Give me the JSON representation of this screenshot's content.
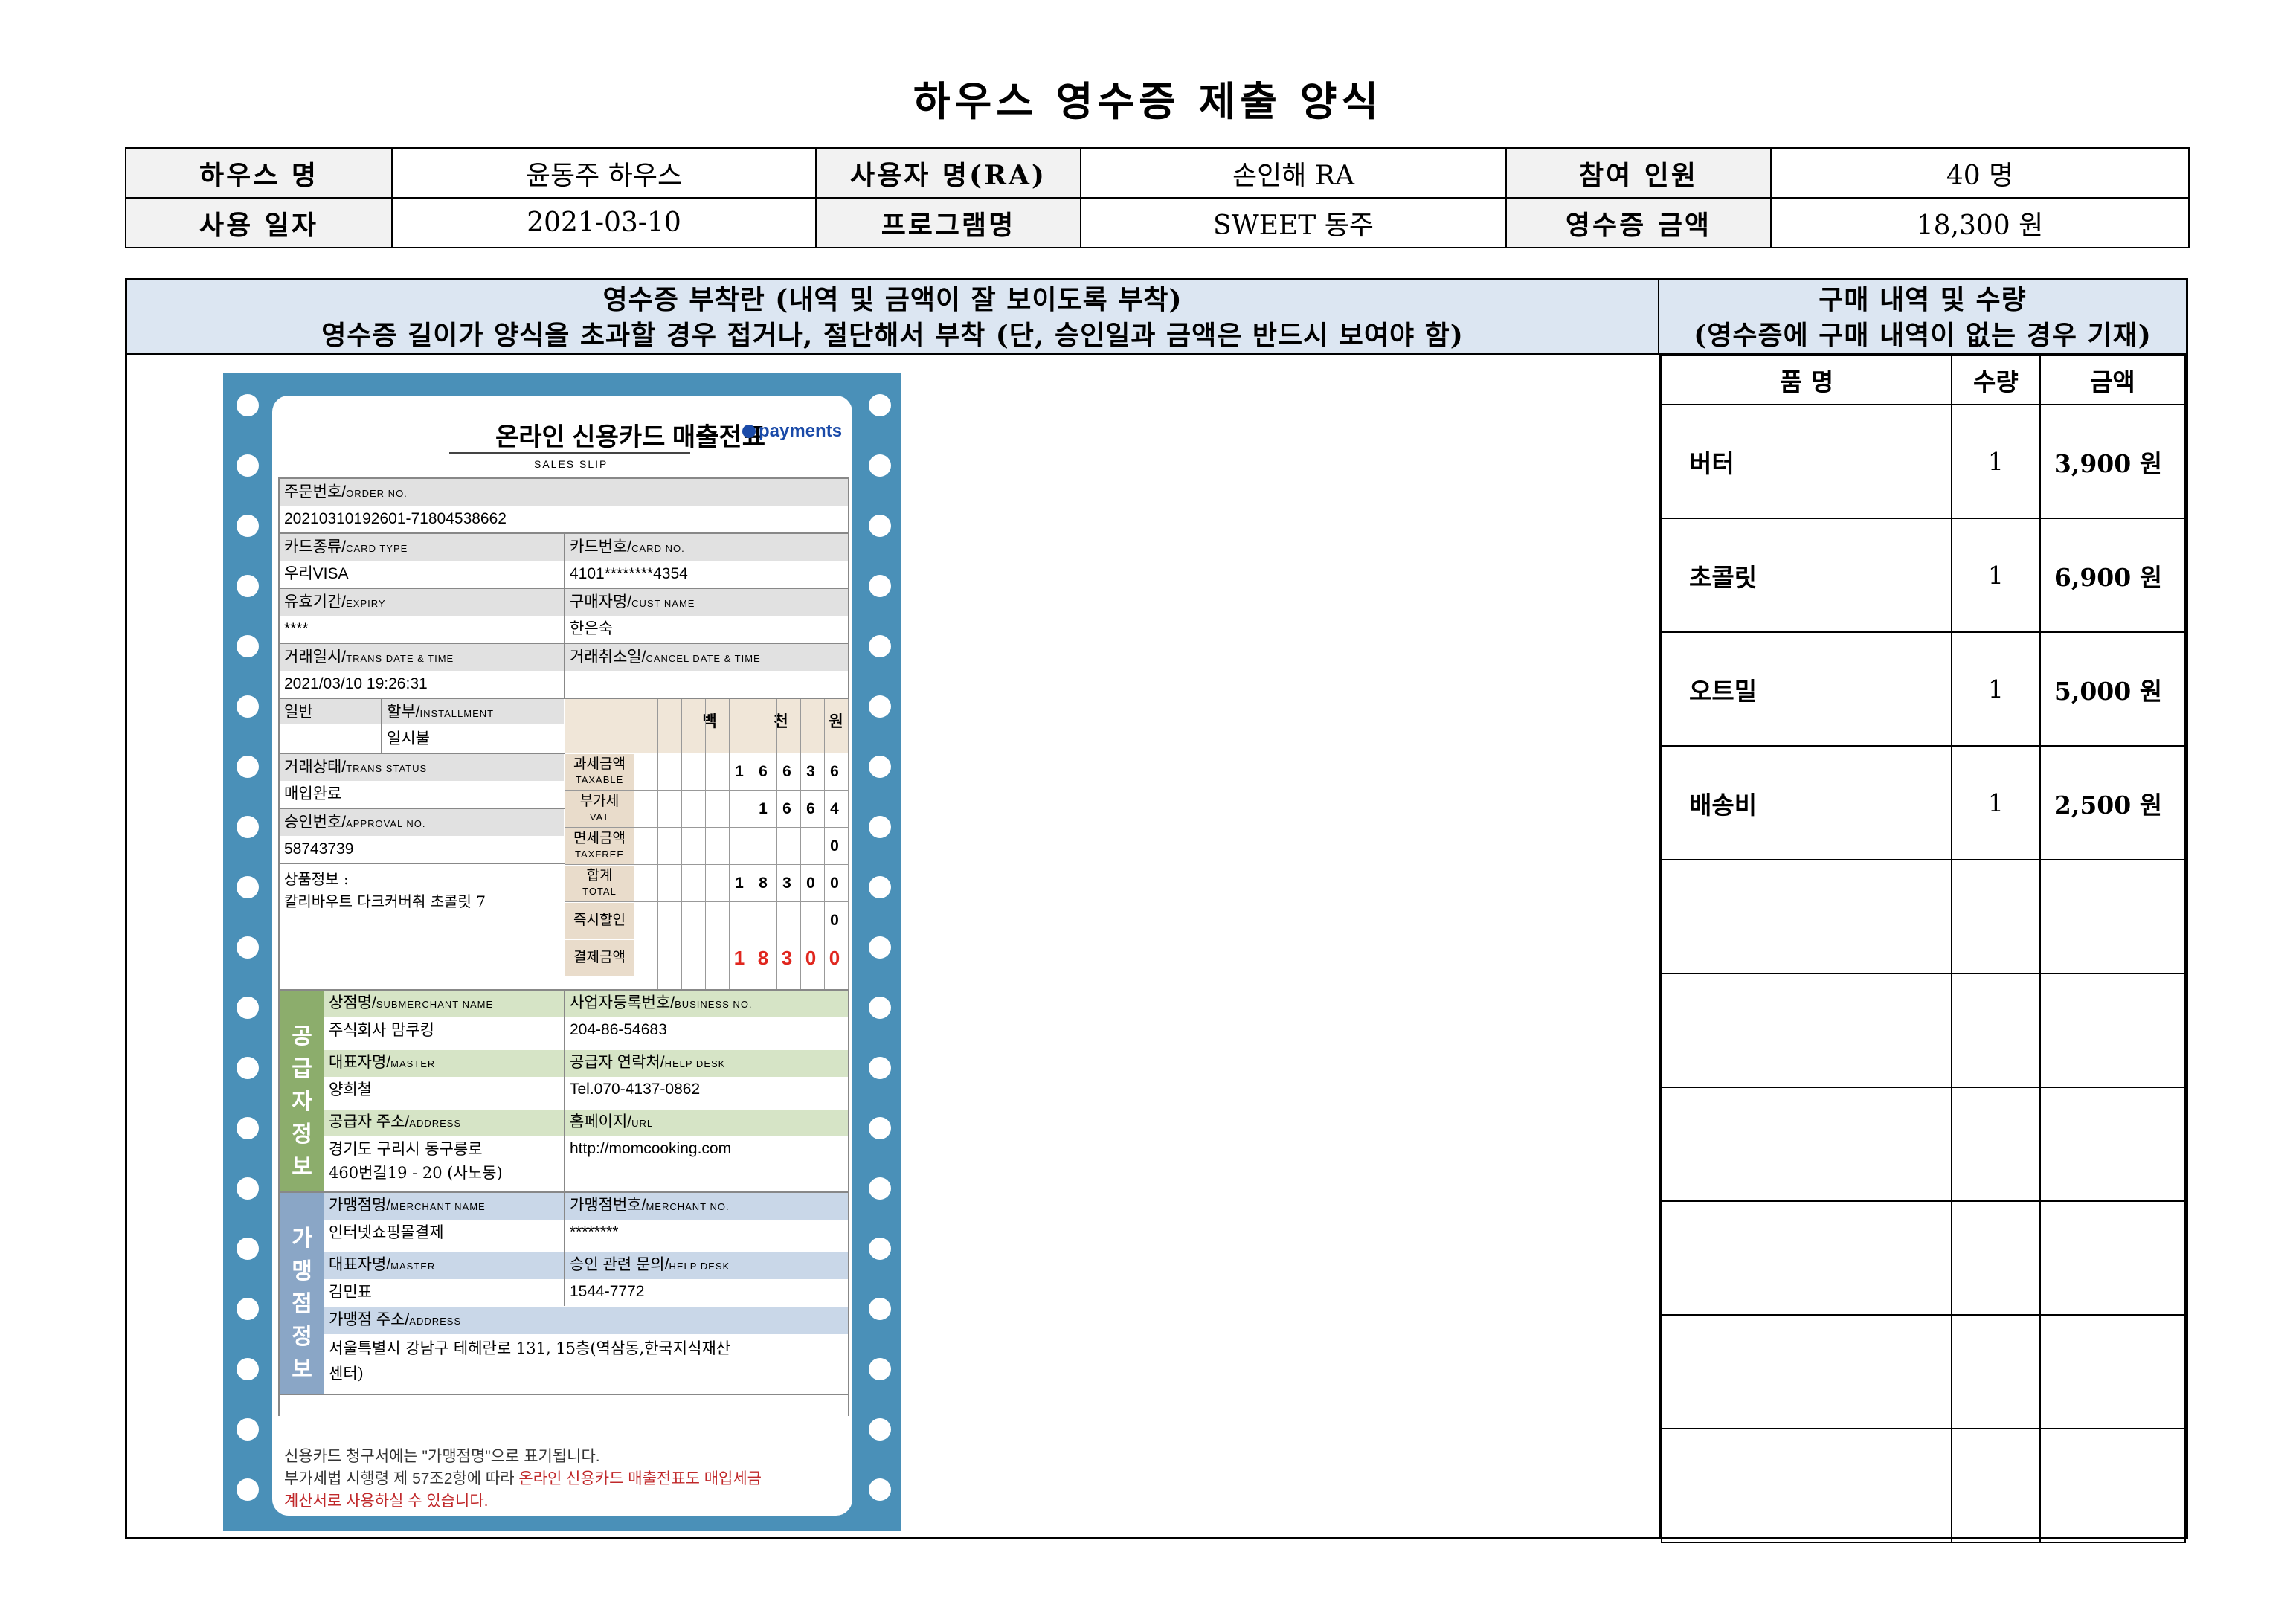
{
  "title": "하우스 영수증 제출 양식",
  "info": {
    "house_label": "하우스 명",
    "house_value": "윤동주 하우스",
    "user_label": "사용자 명(RA)",
    "user_value": "손인해 RA",
    "participants_label": "참여 인원",
    "participants_value": "40 명",
    "date_label": "사용 일자",
    "date_value": "2021-03-10",
    "program_label": "프로그램명",
    "program_value": "SWEET 동주",
    "amount_label": "영수증 금액",
    "amount_value": "18,300 원"
  },
  "attach": {
    "line1": "영수증 부착란 (내역 및 금액이 잘 보이도록 부착)",
    "line2": "영수증 길이가 양식을 초과할 경우 접거나, 절단해서 부착 (단, 승인일과 금액은 반드시 보여야 함)"
  },
  "purchase": {
    "line1": "구매 내역 및 수량",
    "line2": "(영수증에 구매 내역이 없는 경우 기재)",
    "col_name": "품 명",
    "col_qty": "수량",
    "col_amount": "금액",
    "rows": [
      {
        "name": "버터",
        "qty": "1",
        "amount": "3,900 원"
      },
      {
        "name": "초콜릿",
        "qty": "1",
        "amount": "6,900 원"
      },
      {
        "name": "오트밀",
        "qty": "1",
        "amount": "5,000 원"
      },
      {
        "name": "배송비",
        "qty": "1",
        "amount": "2,500 원"
      },
      {
        "name": "",
        "qty": "",
        "amount": ""
      },
      {
        "name": "",
        "qty": "",
        "amount": ""
      },
      {
        "name": "",
        "qty": "",
        "amount": ""
      },
      {
        "name": "",
        "qty": "",
        "amount": ""
      },
      {
        "name": "",
        "qty": "",
        "amount": ""
      },
      {
        "name": "",
        "qty": "",
        "amount": ""
      }
    ]
  },
  "slip": {
    "title": "온라인 신용카드 매출전표",
    "subtitle": "SALES SLIP",
    "logo": "payments",
    "order_label": "주문번호/",
    "order_label_en": "ORDER NO.",
    "order_value": "20210310192601-71804538662",
    "card_type_label": "카드종류/",
    "card_type_label_en": "CARD TYPE",
    "card_type_value": "우리VISA",
    "card_no_label": "카드번호/",
    "card_no_label_en": "CARD NO.",
    "card_no_value": "4101********4354",
    "expiry_label": "유효기간/",
    "expiry_label_en": "EXPIRY",
    "expiry_value": "****",
    "buyer_label": "구매자명/",
    "buyer_label_en": "CUST NAME",
    "buyer_value": "한은숙",
    "trans_label": "거래일시/",
    "trans_label_en": "TRANS DATE & TIME",
    "trans_value": "2021/03/10 19:26:31",
    "cancel_label": "거래취소일/",
    "cancel_label_en": "CANCEL DATE & TIME",
    "general_label": "일반",
    "install_label": "할부/",
    "install_label_en": "INSTALLMENT",
    "install_value": "일시불",
    "unit_hundred": "백",
    "unit_thousand": "천",
    "unit_won": "원",
    "status_label": "거래상태/",
    "status_label_en": "TRANS STATUS",
    "status_value": "매입완료",
    "approval_label": "승인번호/",
    "approval_label_en": "APPROVAL NO.",
    "approval_value": "58743739",
    "product_label": "상품정보 :",
    "product_value": "칼리바우트 다크커버춰 초콜릿 7",
    "taxable_label": "과세금액",
    "taxable_label_en": "TAXABLE",
    "taxable_digits": [
      "1",
      "6",
      "6",
      "3",
      "6"
    ],
    "vat_label": "부가세",
    "vat_label_en": "VAT",
    "vat_digits": [
      "1",
      "6",
      "6",
      "4"
    ],
    "taxfree_label": "면세금액",
    "taxfree_label_en": "TAXFREE",
    "taxfree_digits": [
      "0"
    ],
    "total_label": "합계",
    "total_label_en": "TOTAL",
    "total_digits": [
      "1",
      "8",
      "3",
      "0",
      "0"
    ],
    "discount_label": "즉시할인",
    "discount_digits": [
      "0"
    ],
    "paid_label": "결제금액",
    "paid_digits": [
      "1",
      "8",
      "3",
      "0",
      "0"
    ],
    "supplier_side": "공급자정보",
    "sub_merchant_label": "상점명/",
    "sub_merchant_label_en": "SUBMERCHANT NAME",
    "sub_merchant_value": "주식회사 맘쿠킹",
    "biz_no_label": "사업자등록번호/",
    "biz_no_label_en": "BUSINESS NO.",
    "biz_no_value": "204-86-54683",
    "master_label": "대표자명/",
    "master_label_en": "MASTER",
    "master_value": "양희철",
    "help_label": "공급자 연락처/",
    "help_label_en": "HELP DESK",
    "help_value": "Tel.070-4137-0862",
    "address_label": "공급자 주소/",
    "address_label_en": "ADDRESS",
    "address_value1": "경기도 구리시 동구릉로",
    "address_value2": "460번길19 - 20 (사노동)",
    "url_label": "홈페이지/",
    "url_label_en": "URL",
    "url_value": "http://momcooking.com",
    "merchant_side": "가맹점정보",
    "merchant_label": "가맹점명/",
    "merchant_label_en": "MERCHANT NAME",
    "merchant_value": "인터넷쇼핑몰결제",
    "merchant_no_label": "가맹점번호/",
    "merchant_no_label_en": "MERCHANT NO.",
    "merchant_no_value": "********",
    "m_master_label": "대표자명/",
    "m_master_label_en": "MASTER",
    "m_master_value": "김민표",
    "m_help_label": "승인 관련 문의/",
    "m_help_label_en": "HELP DESK",
    "m_help_value": "1544-7772",
    "m_address_label": "가맹점 주소/",
    "m_address_label_en": "ADDRESS",
    "m_address_value1": "서울특별시 강남구 테헤란로 131, 15층(역삼동,한국지식재산",
    "m_address_value2": "센터)",
    "note1": "신용카드 청구서에는 \"가맹점명\"으로 표기됩니다.",
    "note2_a": "부가세법 시행령 제 57조2항에 따라 ",
    "note2_b": "온라인 신용카드 매출전표도 매입세금",
    "note3": "계산서로 사용하실 수 있습니다."
  },
  "colors": {
    "header_fill": "#dce6f2",
    "receipt_blue": "#4a90b8",
    "paid_red": "#e0261e"
  }
}
